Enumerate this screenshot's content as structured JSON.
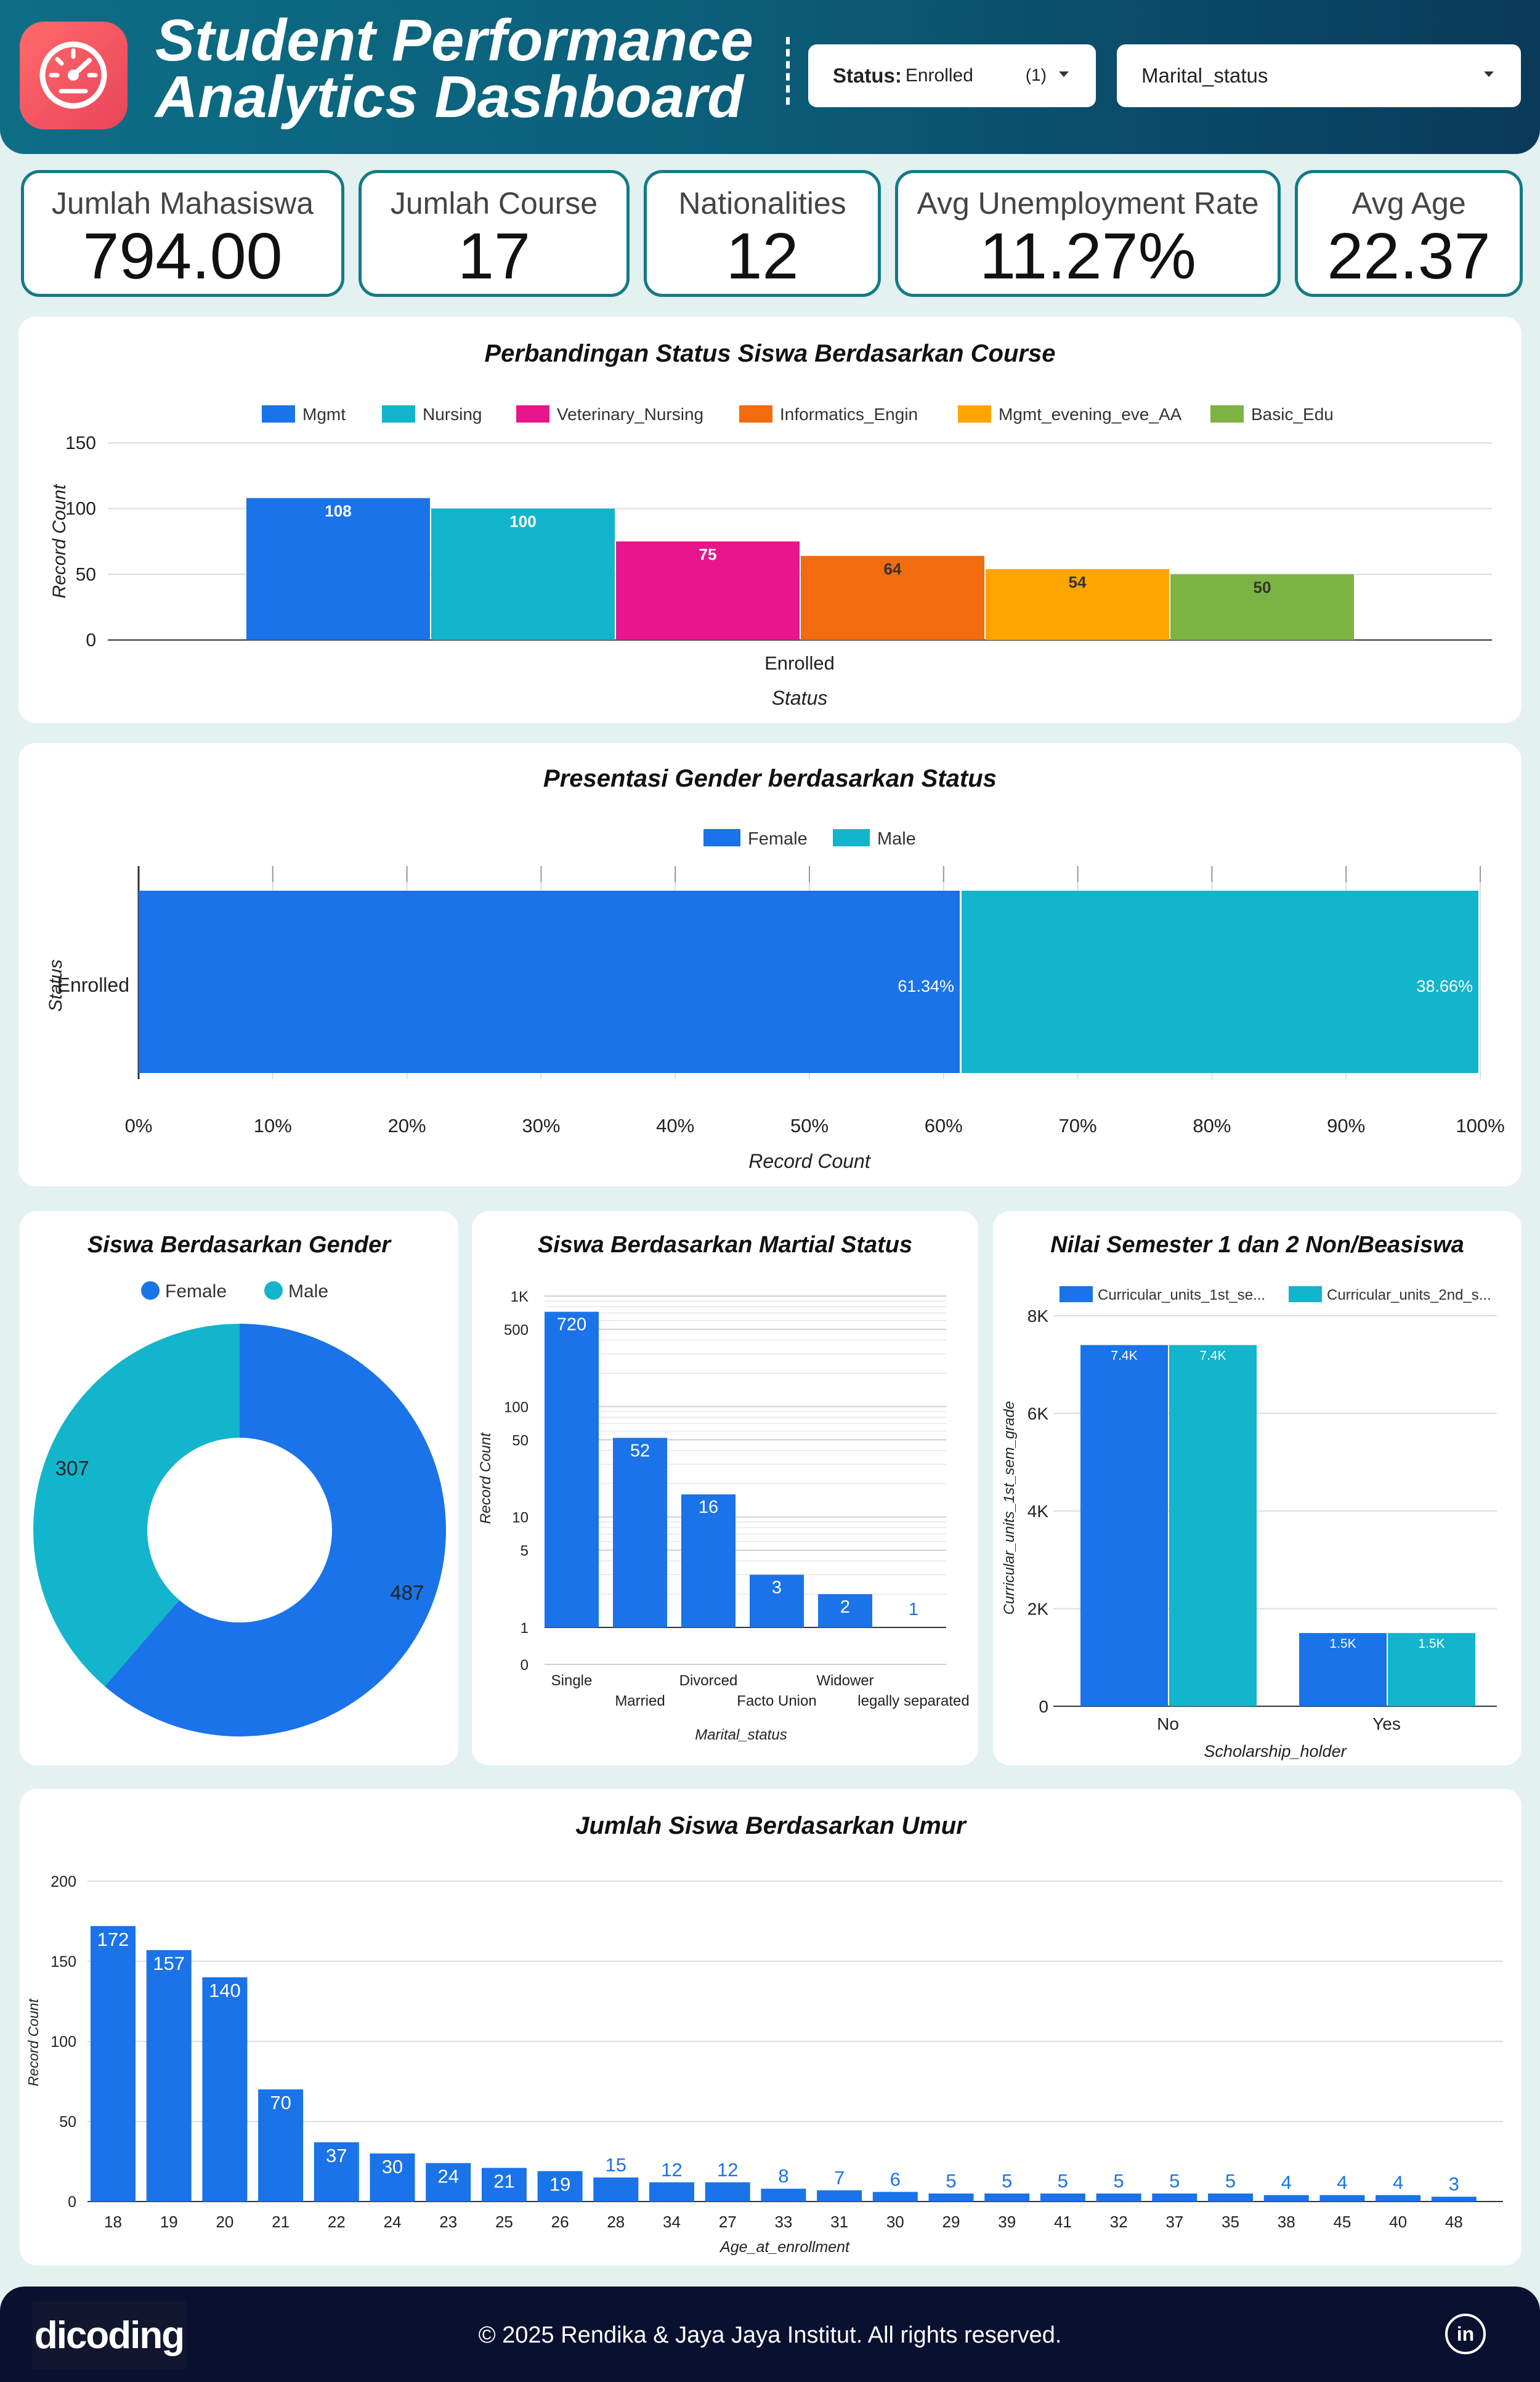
{
  "header": {
    "title_line1": "Student Performance",
    "title_line2": "Analytics Dashboard",
    "filter_status_key": "Status:",
    "filter_status_value": "Enrolled",
    "filter_status_count": "(1)",
    "filter_marital_label": "Marital_status"
  },
  "kpis": [
    {
      "label": "Jumlah Mahasiswa",
      "value": "794.00"
    },
    {
      "label": "Jumlah Course",
      "value": "17"
    },
    {
      "label": "Nationalities",
      "value": "12"
    },
    {
      "label": "Avg Unemployment Rate",
      "value": "11.27%"
    },
    {
      "label": "Avg Age",
      "value": "22.37"
    }
  ],
  "colors": {
    "blue": "#1a73e8",
    "teal": "#12b5cb",
    "magenta": "#e8168c",
    "orange": "#f26b0f",
    "amber": "#ffa500",
    "green": "#7cb342"
  },
  "chart_data": [
    {
      "type": "bar",
      "title": "Perbandingan Status Siswa Berdasarkan Course",
      "xlabel": "Status",
      "ylabel": "Record Count",
      "categories": [
        "Enrolled"
      ],
      "series": [
        {
          "name": "Mgmt",
          "values": [
            108
          ]
        },
        {
          "name": "Nursing",
          "values": [
            100
          ]
        },
        {
          "name": "Veterinary_Nursing",
          "values": [
            75
          ]
        },
        {
          "name": "Informatics_Engin",
          "values": [
            64
          ]
        },
        {
          "name": "Mgmt_evening_eve_AA",
          "values": [
            54
          ]
        },
        {
          "name": "Basic_Edu",
          "values": [
            50
          ]
        }
      ],
      "yticks": [
        "0",
        "50",
        "100",
        "150"
      ],
      "ylim": [
        0,
        150
      ],
      "legend": "top",
      "grid": true
    },
    {
      "type": "bar",
      "orientation": "horizontal-stacked-100",
      "title": "Presentasi Gender berdasarkan Status",
      "xlabel": "Record Count",
      "ylabel": "Status",
      "categories": [
        "Enrolled"
      ],
      "series": [
        {
          "name": "Female",
          "values": [
            61.34
          ],
          "label": "61.34%"
        },
        {
          "name": "Male",
          "values": [
            38.66
          ],
          "label": "38.66%"
        }
      ],
      "xticks": [
        "0%",
        "10%",
        "20%",
        "30%",
        "40%",
        "50%",
        "60%",
        "70%",
        "80%",
        "90%",
        "100%"
      ],
      "xlim": [
        0,
        100
      ],
      "legend": "top"
    },
    {
      "type": "pie",
      "donut": true,
      "title": "Siswa Berdasarkan Gender",
      "categories": [
        "Female",
        "Male"
      ],
      "values": [
        487,
        307
      ],
      "labels": [
        "487",
        "307"
      ],
      "legend": "top"
    },
    {
      "type": "bar",
      "title": "Siswa Berdasarkan Martial Status",
      "xlabel": "Marital_status",
      "ylabel": "Record Count",
      "yscale": "log",
      "categories": [
        "Single",
        "Married",
        "Divorced",
        "Facto Union",
        "Widower",
        "legally separated"
      ],
      "values": [
        720,
        52,
        16,
        3,
        2,
        1
      ],
      "labels": [
        "720",
        "52",
        "16",
        "3",
        "2",
        "1"
      ],
      "yticks": [
        "1K",
        "500",
        "100",
        "50",
        "10",
        "5",
        "1",
        "0"
      ]
    },
    {
      "type": "bar",
      "title": "Nilai Semester 1 dan 2 Non/Beasiswa",
      "xlabel": "Scholarship_holder",
      "ylabel": "Curricular_units_1st_sem_grade",
      "categories": [
        "No",
        "Yes"
      ],
      "series": [
        {
          "name": "Curricular_units_1st_se...",
          "values": [
            7400,
            1500
          ],
          "labels": [
            "7.4K",
            "1.5K"
          ]
        },
        {
          "name": "Curricular_units_2nd_s...",
          "values": [
            7400,
            1500
          ],
          "labels": [
            "7.4K",
            "1.5K"
          ]
        }
      ],
      "yticks": [
        "0",
        "2K",
        "4K",
        "6K",
        "8K"
      ],
      "ylim": [
        0,
        8000
      ],
      "legend": "top"
    },
    {
      "type": "bar",
      "title": "Jumlah Siswa Berdasarkan Umur",
      "xlabel": "Age_at_enrollment",
      "ylabel": "Record Count",
      "categories": [
        "18",
        "19",
        "20",
        "21",
        "22",
        "24",
        "23",
        "25",
        "26",
        "28",
        "34",
        "27",
        "33",
        "31",
        "30",
        "29",
        "39",
        "41",
        "32",
        "37",
        "35",
        "38",
        "45",
        "40",
        "48"
      ],
      "values": [
        172,
        157,
        140,
        70,
        37,
        30,
        24,
        21,
        19,
        15,
        12,
        12,
        8,
        7,
        6,
        5,
        5,
        5,
        5,
        5,
        5,
        4,
        4,
        4,
        3
      ],
      "yticks": [
        "0",
        "50",
        "100",
        "150",
        "200"
      ],
      "ylim": [
        0,
        200
      ]
    }
  ],
  "footer": {
    "brand": "dicoding",
    "copyright": "© 2025 Rendika & Jaya Jaya Institut. All rights reserved.",
    "linkedin": "in"
  }
}
